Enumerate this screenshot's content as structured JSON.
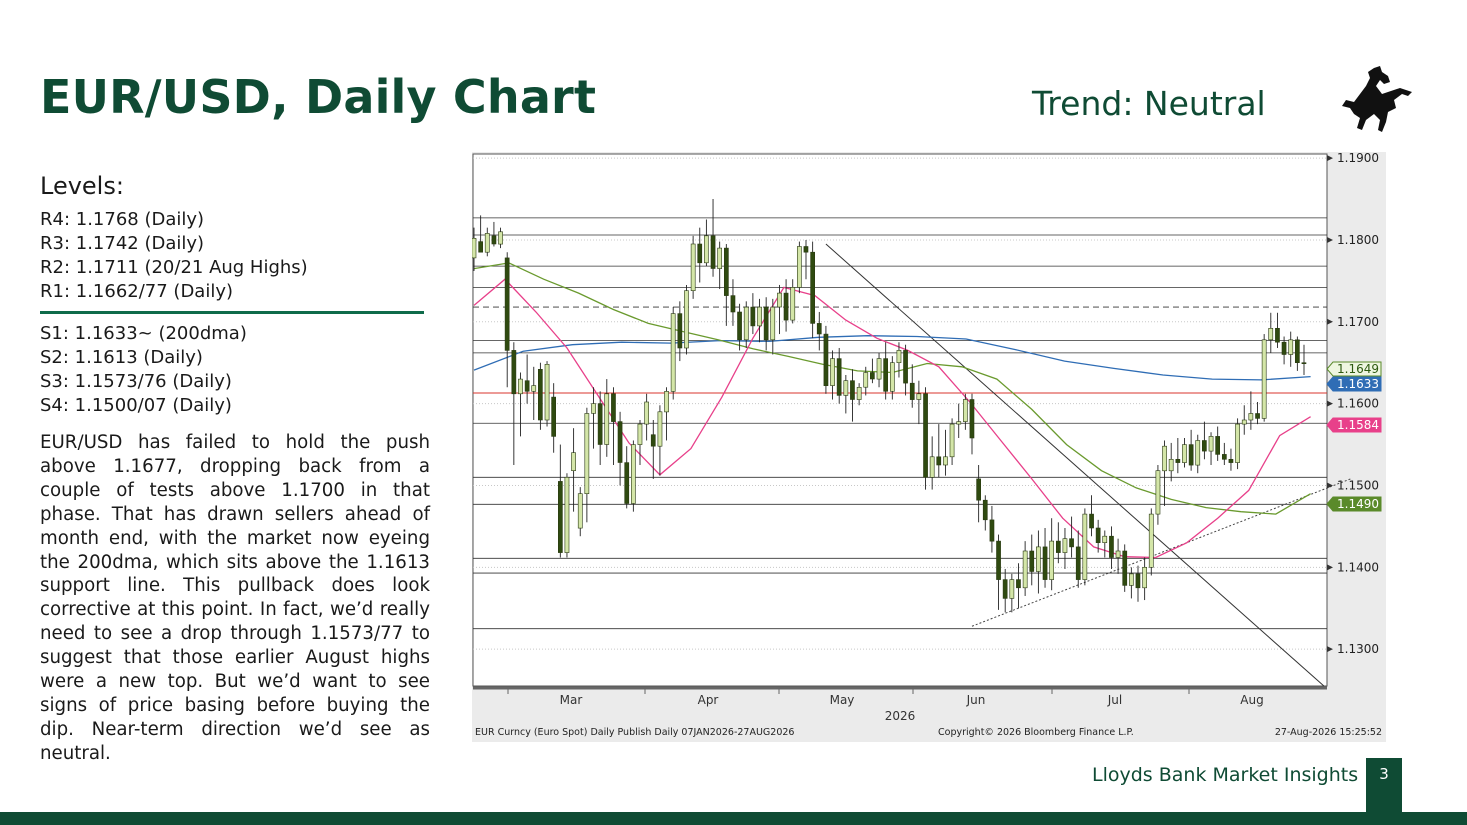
{
  "header": {
    "title": "EUR/USD, Daily Chart",
    "trend": "Trend: Neutral"
  },
  "logo": {
    "icon": "black-horse-icon"
  },
  "levels": {
    "heading": "Levels:",
    "resistance": [
      "R4:  1.1768 (Daily)",
      "R3:  1.1742 (Daily)",
      "R2:  1.1711 (20/21 Aug Highs)",
      "R1:   1.1662/77 (Daily)"
    ],
    "support": [
      "S1:  1.1633~ (200dma)",
      "S2:  1.1613 (Daily)",
      "S3:  1.1573/76 (Daily)",
      "S4:  1.1500/07 (Daily)"
    ]
  },
  "commentary": "EUR/USD has failed to hold the push above 1.1677, dropping back from a couple of tests above 1.1700 in that phase.  That has drawn sellers ahead of month end, with the market now eyeing the 200dma, which sits above the 1.1613 support line.  This pullback does look corrective at this point.  In fact, we’d really need to see a drop through 1.1573/77 to suggest that those earlier August highs were a new top.  But we’d want to see signs of price basing before buying the dip.  Near-term direction we’d see as neutral.",
  "footer": {
    "label": "Lloyds Bank Market Insights",
    "page": "3"
  },
  "chart_data": {
    "type": "candlestick",
    "ylim": [
      1.1255,
      1.1905
    ],
    "y_ticks": [
      "1.1900",
      "1.1800",
      "1.1700",
      "1.1600",
      "1.1500",
      "1.1400",
      "1.1300"
    ],
    "x_ticks": [
      "Mar",
      "Apr",
      "May",
      "Jun",
      "Jul",
      "Aug"
    ],
    "x_year": "2026",
    "source_left": "EUR Curncy (Euro Spot) Daily Publish Daily 07JAN2026-27AUG2026",
    "source_mid": "Copyright© 2026 Bloomberg Finance L.P.",
    "source_right": "27-Aug-2026 15:25:52",
    "value_tags": [
      {
        "label": "1.1649",
        "value": 1.1649,
        "color": "#5a8a2a",
        "bg": "#eef6e0",
        "text": "#2d5a10"
      },
      {
        "label": "1.1633",
        "value": 1.1633,
        "color": "#2f6db5",
        "bg": "#2f6db5",
        "text": "#ffffff"
      },
      {
        "label": "1.1584",
        "value": 1.1584,
        "color": "#e8408a",
        "bg": "#e8408a",
        "text": "#ffffff"
      },
      {
        "label": "1.1490",
        "value": 1.149,
        "color": "#5a8a2a",
        "bg": "#5a8a2a",
        "text": "#ffffff"
      }
    ],
    "horizontal_levels": [
      1.1827,
      1.1806,
      1.1768,
      1.1742,
      1.1677,
      1.1662,
      1.1613,
      1.1576,
      1.151,
      1.1477,
      1.1411,
      1.1393,
      1.1325
    ],
    "dashed_levels": [
      1.1718
    ],
    "red_level": 1.1613,
    "ma_20": [
      1.172,
      1.1752,
      1.1712,
      1.1668,
      1.161,
      1.1552,
      1.1513,
      1.1545,
      1.1608,
      1.168,
      1.1742,
      1.1732,
      1.1702,
      1.168,
      1.1665,
      1.1645,
      1.1602,
      1.1555,
      1.1508,
      1.146,
      1.1425,
      1.1413,
      1.1412,
      1.143,
      1.146,
      1.1494,
      1.1561,
      1.1584
    ],
    "ma_50": [
      1.1765,
      1.1772,
      1.1752,
      1.1735,
      1.1715,
      1.1698,
      1.1688,
      1.1678,
      1.1667,
      1.1658,
      1.1648,
      1.164,
      1.1638,
      1.1649,
      1.1645,
      1.163,
      1.1593,
      1.155,
      1.1518,
      1.1497,
      1.1483,
      1.1473,
      1.1468,
      1.1465,
      1.149
    ],
    "ma_200": [
      1.1641,
      1.1664,
      1.1672,
      1.1675,
      1.1674,
      1.1677,
      1.1676,
      1.1681,
      1.1683,
      1.1682,
      1.1679,
      1.1666,
      1.1652,
      1.1643,
      1.1635,
      1.163,
      1.1629,
      1.1633
    ],
    "candles": [
      {
        "o": 1.1778,
        "h": 1.1815,
        "l": 1.1762,
        "c": 1.1802
      },
      {
        "o": 1.1798,
        "h": 1.183,
        "l": 1.1788,
        "c": 1.1785
      },
      {
        "o": 1.1785,
        "h": 1.1815,
        "l": 1.178,
        "c": 1.1808
      },
      {
        "o": 1.1805,
        "h": 1.1822,
        "l": 1.1792,
        "c": 1.1795
      },
      {
        "o": 1.1795,
        "h": 1.1815,
        "l": 1.179,
        "c": 1.181
      },
      {
        "o": 1.1778,
        "h": 1.1785,
        "l": 1.162,
        "c": 1.1665
      },
      {
        "o": 1.1665,
        "h": 1.1675,
        "l": 1.1525,
        "c": 1.1612
      },
      {
        "o": 1.1612,
        "h": 1.1638,
        "l": 1.156,
        "c": 1.163
      },
      {
        "o": 1.1628,
        "h": 1.166,
        "l": 1.16,
        "c": 1.1615
      },
      {
        "o": 1.1615,
        "h": 1.1645,
        "l": 1.158,
        "c": 1.1622
      },
      {
        "o": 1.1642,
        "h": 1.165,
        "l": 1.1568,
        "c": 1.158
      },
      {
        "o": 1.158,
        "h": 1.1652,
        "l": 1.1572,
        "c": 1.1648
      },
      {
        "o": 1.1608,
        "h": 1.1625,
        "l": 1.154,
        "c": 1.156
      },
      {
        "o": 1.1505,
        "h": 1.155,
        "l": 1.1412,
        "c": 1.1418
      },
      {
        "o": 1.1418,
        "h": 1.1515,
        "l": 1.1412,
        "c": 1.151
      },
      {
        "o": 1.1518,
        "h": 1.157,
        "l": 1.1468,
        "c": 1.154
      },
      {
        "o": 1.1448,
        "h": 1.1498,
        "l": 1.1438,
        "c": 1.149
      },
      {
        "o": 1.149,
        "h": 1.1595,
        "l": 1.1455,
        "c": 1.1588
      },
      {
        "o": 1.1588,
        "h": 1.162,
        "l": 1.1545,
        "c": 1.16
      },
      {
        "o": 1.16,
        "h": 1.1615,
        "l": 1.1525,
        "c": 1.155
      },
      {
        "o": 1.155,
        "h": 1.163,
        "l": 1.1535,
        "c": 1.1612
      },
      {
        "o": 1.1612,
        "h": 1.162,
        "l": 1.1525,
        "c": 1.1578
      },
      {
        "o": 1.1578,
        "h": 1.159,
        "l": 1.15,
        "c": 1.1528
      },
      {
        "o": 1.1528,
        "h": 1.1548,
        "l": 1.1472,
        "c": 1.1478
      },
      {
        "o": 1.1478,
        "h": 1.1555,
        "l": 1.1468,
        "c": 1.155
      },
      {
        "o": 1.155,
        "h": 1.158,
        "l": 1.1525,
        "c": 1.1575
      },
      {
        "o": 1.1575,
        "h": 1.1612,
        "l": 1.1555,
        "c": 1.1602
      },
      {
        "o": 1.1562,
        "h": 1.158,
        "l": 1.1508,
        "c": 1.1548
      },
      {
        "o": 1.1548,
        "h": 1.1598,
        "l": 1.1512,
        "c": 1.159
      },
      {
        "o": 1.159,
        "h": 1.162,
        "l": 1.1555,
        "c": 1.1615
      },
      {
        "o": 1.1615,
        "h": 1.1718,
        "l": 1.1605,
        "c": 1.171
      },
      {
        "o": 1.171,
        "h": 1.1725,
        "l": 1.1652,
        "c": 1.1668
      },
      {
        "o": 1.1668,
        "h": 1.1745,
        "l": 1.166,
        "c": 1.1738
      },
      {
        "o": 1.1738,
        "h": 1.1805,
        "l": 1.1728,
        "c": 1.1795
      },
      {
        "o": 1.1795,
        "h": 1.1815,
        "l": 1.1748,
        "c": 1.1772
      },
      {
        "o": 1.1772,
        "h": 1.1825,
        "l": 1.1768,
        "c": 1.1805
      },
      {
        "o": 1.1805,
        "h": 1.185,
        "l": 1.1755,
        "c": 1.1765
      },
      {
        "o": 1.1765,
        "h": 1.1798,
        "l": 1.174,
        "c": 1.179
      },
      {
        "o": 1.179,
        "h": 1.1795,
        "l": 1.1695,
        "c": 1.1732
      },
      {
        "o": 1.1732,
        "h": 1.1752,
        "l": 1.1695,
        "c": 1.1712
      },
      {
        "o": 1.1712,
        "h": 1.1722,
        "l": 1.1665,
        "c": 1.1678
      },
      {
        "o": 1.1678,
        "h": 1.1725,
        "l": 1.1668,
        "c": 1.1718
      },
      {
        "o": 1.1718,
        "h": 1.1735,
        "l": 1.1685,
        "c": 1.1695
      },
      {
        "o": 1.1695,
        "h": 1.1728,
        "l": 1.1675,
        "c": 1.1718
      },
      {
        "o": 1.1718,
        "h": 1.173,
        "l": 1.1665,
        "c": 1.1678
      },
      {
        "o": 1.1678,
        "h": 1.1728,
        "l": 1.166,
        "c": 1.1718
      },
      {
        "o": 1.1718,
        "h": 1.1745,
        "l": 1.1685,
        "c": 1.1735
      },
      {
        "o": 1.1735,
        "h": 1.1752,
        "l": 1.1688,
        "c": 1.1702
      },
      {
        "o": 1.1702,
        "h": 1.1752,
        "l": 1.1698,
        "c": 1.1742
      },
      {
        "o": 1.1742,
        "h": 1.1798,
        "l": 1.1735,
        "c": 1.1792
      },
      {
        "o": 1.1792,
        "h": 1.18,
        "l": 1.1752,
        "c": 1.1785
      },
      {
        "o": 1.1785,
        "h": 1.1798,
        "l": 1.168,
        "c": 1.1698
      },
      {
        "o": 1.1698,
        "h": 1.1712,
        "l": 1.1665,
        "c": 1.1685
      },
      {
        "o": 1.1685,
        "h": 1.1695,
        "l": 1.1612,
        "c": 1.1622
      },
      {
        "o": 1.1622,
        "h": 1.1665,
        "l": 1.1605,
        "c": 1.1655
      },
      {
        "o": 1.1655,
        "h": 1.1668,
        "l": 1.16,
        "c": 1.161
      },
      {
        "o": 1.161,
        "h": 1.1635,
        "l": 1.1588,
        "c": 1.1628
      },
      {
        "o": 1.1628,
        "h": 1.1642,
        "l": 1.1578,
        "c": 1.1605
      },
      {
        "o": 1.1605,
        "h": 1.1625,
        "l": 1.1598,
        "c": 1.162
      },
      {
        "o": 1.162,
        "h": 1.1645,
        "l": 1.161,
        "c": 1.1638
      },
      {
        "o": 1.1638,
        "h": 1.1655,
        "l": 1.1625,
        "c": 1.163
      },
      {
        "o": 1.163,
        "h": 1.1662,
        "l": 1.162,
        "c": 1.1655
      },
      {
        "o": 1.1655,
        "h": 1.1675,
        "l": 1.1605,
        "c": 1.1615
      },
      {
        "o": 1.1615,
        "h": 1.1658,
        "l": 1.1605,
        "c": 1.165
      },
      {
        "o": 1.165,
        "h": 1.1675,
        "l": 1.1632,
        "c": 1.1665
      },
      {
        "o": 1.1665,
        "h": 1.1672,
        "l": 1.161,
        "c": 1.1625
      },
      {
        "o": 1.1625,
        "h": 1.1648,
        "l": 1.1595,
        "c": 1.1605
      },
      {
        "o": 1.1605,
        "h": 1.1628,
        "l": 1.1575,
        "c": 1.1612
      },
      {
        "o": 1.1612,
        "h": 1.162,
        "l": 1.1495,
        "c": 1.151
      },
      {
        "o": 1.151,
        "h": 1.156,
        "l": 1.1495,
        "c": 1.1535
      },
      {
        "o": 1.1535,
        "h": 1.1575,
        "l": 1.151,
        "c": 1.1525
      },
      {
        "o": 1.1525,
        "h": 1.1568,
        "l": 1.1512,
        "c": 1.1535
      },
      {
        "o": 1.1535,
        "h": 1.1582,
        "l": 1.1525,
        "c": 1.1575
      },
      {
        "o": 1.1575,
        "h": 1.16,
        "l": 1.1558,
        "c": 1.1578
      },
      {
        "o": 1.1578,
        "h": 1.1612,
        "l": 1.1568,
        "c": 1.1605
      },
      {
        "o": 1.1605,
        "h": 1.1612,
        "l": 1.1538,
        "c": 1.1558
      },
      {
        "o": 1.1508,
        "h": 1.1525,
        "l": 1.1455,
        "c": 1.1482
      },
      {
        "o": 1.1482,
        "h": 1.1488,
        "l": 1.1445,
        "c": 1.1458
      },
      {
        "o": 1.1458,
        "h": 1.1475,
        "l": 1.1418,
        "c": 1.1432
      },
      {
        "o": 1.1432,
        "h": 1.144,
        "l": 1.1348,
        "c": 1.1385
      },
      {
        "o": 1.1385,
        "h": 1.1398,
        "l": 1.1345,
        "c": 1.1362
      },
      {
        "o": 1.1362,
        "h": 1.1392,
        "l": 1.1345,
        "c": 1.1385
      },
      {
        "o": 1.1385,
        "h": 1.1405,
        "l": 1.135,
        "c": 1.1375
      },
      {
        "o": 1.1375,
        "h": 1.1432,
        "l": 1.1365,
        "c": 1.142
      },
      {
        "o": 1.142,
        "h": 1.144,
        "l": 1.1378,
        "c": 1.1395
      },
      {
        "o": 1.1395,
        "h": 1.1445,
        "l": 1.1368,
        "c": 1.1425
      },
      {
        "o": 1.1425,
        "h": 1.1448,
        "l": 1.1375,
        "c": 1.1385
      },
      {
        "o": 1.1385,
        "h": 1.146,
        "l": 1.1372,
        "c": 1.1432
      },
      {
        "o": 1.1432,
        "h": 1.1455,
        "l": 1.1405,
        "c": 1.1418
      },
      {
        "o": 1.1418,
        "h": 1.1448,
        "l": 1.1398,
        "c": 1.1435
      },
      {
        "o": 1.1435,
        "h": 1.1462,
        "l": 1.1412,
        "c": 1.1425
      },
      {
        "o": 1.1425,
        "h": 1.1445,
        "l": 1.1375,
        "c": 1.1385
      },
      {
        "o": 1.1385,
        "h": 1.1472,
        "l": 1.1378,
        "c": 1.1465
      },
      {
        "o": 1.1465,
        "h": 1.1488,
        "l": 1.1438,
        "c": 1.1448
      },
      {
        "o": 1.1448,
        "h": 1.1458,
        "l": 1.1418,
        "c": 1.143
      },
      {
        "o": 1.143,
        "h": 1.1445,
        "l": 1.1412,
        "c": 1.1438
      },
      {
        "o": 1.1438,
        "h": 1.145,
        "l": 1.1398,
        "c": 1.1412
      },
      {
        "o": 1.1412,
        "h": 1.1435,
        "l": 1.1392,
        "c": 1.142
      },
      {
        "o": 1.142,
        "h": 1.1428,
        "l": 1.137,
        "c": 1.1378
      },
      {
        "o": 1.1378,
        "h": 1.14,
        "l": 1.1362,
        "c": 1.1392
      },
      {
        "o": 1.1392,
        "h": 1.1402,
        "l": 1.1358,
        "c": 1.1375
      },
      {
        "o": 1.1375,
        "h": 1.1412,
        "l": 1.136,
        "c": 1.14
      },
      {
        "o": 1.14,
        "h": 1.1472,
        "l": 1.139,
        "c": 1.1465
      },
      {
        "o": 1.1465,
        "h": 1.1525,
        "l": 1.1452,
        "c": 1.1518
      },
      {
        "o": 1.1518,
        "h": 1.1555,
        "l": 1.1475,
        "c": 1.1548
      },
      {
        "o": 1.1518,
        "h": 1.1552,
        "l": 1.1505,
        "c": 1.1532
      },
      {
        "o": 1.1532,
        "h": 1.1558,
        "l": 1.1515,
        "c": 1.1528
      },
      {
        "o": 1.1528,
        "h": 1.1558,
        "l": 1.1522,
        "c": 1.155
      },
      {
        "o": 1.155,
        "h": 1.1568,
        "l": 1.1518,
        "c": 1.1525
      },
      {
        "o": 1.1525,
        "h": 1.1562,
        "l": 1.1515,
        "c": 1.1555
      },
      {
        "o": 1.1555,
        "h": 1.1578,
        "l": 1.1532,
        "c": 1.1542
      },
      {
        "o": 1.1542,
        "h": 1.1565,
        "l": 1.1525,
        "c": 1.156
      },
      {
        "o": 1.156,
        "h": 1.1572,
        "l": 1.153,
        "c": 1.1538
      },
      {
        "o": 1.1538,
        "h": 1.1552,
        "l": 1.1525,
        "c": 1.1532
      },
      {
        "o": 1.1532,
        "h": 1.1545,
        "l": 1.1518,
        "c": 1.1528
      },
      {
        "o": 1.1528,
        "h": 1.1582,
        "l": 1.152,
        "c": 1.1575
      },
      {
        "o": 1.1575,
        "h": 1.1598,
        "l": 1.1562,
        "c": 1.158
      },
      {
        "o": 1.158,
        "h": 1.1615,
        "l": 1.1568,
        "c": 1.1588
      },
      {
        "o": 1.1588,
        "h": 1.1602,
        "l": 1.1575,
        "c": 1.1582
      },
      {
        "o": 1.1582,
        "h": 1.1685,
        "l": 1.1578,
        "c": 1.1678
      },
      {
        "o": 1.1678,
        "h": 1.1711,
        "l": 1.1662,
        "c": 1.1692
      },
      {
        "o": 1.1692,
        "h": 1.1711,
        "l": 1.1668,
        "c": 1.1675
      },
      {
        "o": 1.1675,
        "h": 1.1682,
        "l": 1.1648,
        "c": 1.166
      },
      {
        "o": 1.166,
        "h": 1.1688,
        "l": 1.1645,
        "c": 1.1678
      },
      {
        "o": 1.1678,
        "h": 1.1682,
        "l": 1.164,
        "c": 1.165
      },
      {
        "o": 1.165,
        "h": 1.1672,
        "l": 1.1635,
        "c": 1.1649
      }
    ]
  }
}
